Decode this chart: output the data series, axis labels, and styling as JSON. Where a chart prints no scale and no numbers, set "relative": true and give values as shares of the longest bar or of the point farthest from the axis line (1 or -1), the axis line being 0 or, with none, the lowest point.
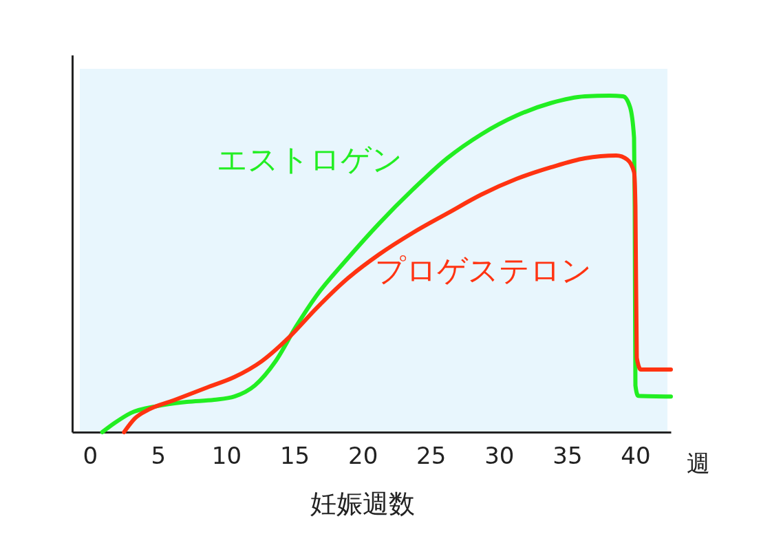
{
  "chart_data": {
    "type": "line",
    "xlabel": "妊娠週数",
    "relative": true,
    "xlim": [
      -1.3,
      42.6
    ],
    "xticks": [
      0,
      5,
      10,
      15,
      20,
      25,
      30,
      35,
      40
    ],
    "annotations": [
      "週"
    ],
    "grid": false,
    "legend": false,
    "marker": "none",
    "line_style": "solid",
    "series": [
      {
        "name": "エストロゲン",
        "color": "#22ee22",
        "x": [
          0.9,
          1.8,
          3.0,
          5.0,
          7.1,
          9.1,
          10.6,
          12.1,
          13.6,
          15.1,
          16.6,
          18.7,
          21.2,
          23.7,
          26.2,
          28.7,
          31.3,
          33.8,
          36.3,
          38.1,
          39.1,
          39.6,
          39.9,
          39.95,
          40.0,
          40.2,
          42.6
        ],
        "values": [
          0,
          0.027,
          0.057,
          0.078,
          0.09,
          0.096,
          0.106,
          0.139,
          0.21,
          0.313,
          0.405,
          0.507,
          0.62,
          0.722,
          0.814,
          0.885,
          0.941,
          0.978,
          0.998,
          1,
          0.998,
          0.967,
          0.875,
          0.671,
          0.139,
          0.108,
          0.106
        ]
      },
      {
        "name": "プロゲステロン",
        "color": "#ff3311",
        "x": [
          2.5,
          3.3,
          4.3,
          6.1,
          8.6,
          10.6,
          12.6,
          14.6,
          16.6,
          18.7,
          21.2,
          23.7,
          26.2,
          28.7,
          31.3,
          33.8,
          36.3,
          38.6,
          39.4,
          39.9,
          40.0,
          40.1,
          40.4,
          42.6
        ],
        "values": [
          0,
          0.041,
          0.067,
          0.094,
          0.133,
          0.164,
          0.211,
          0.282,
          0.368,
          0.45,
          0.528,
          0.593,
          0.65,
          0.706,
          0.753,
          0.787,
          0.814,
          0.822,
          0.81,
          0.773,
          0.671,
          0.221,
          0.186,
          0.186
        ]
      }
    ]
  }
}
